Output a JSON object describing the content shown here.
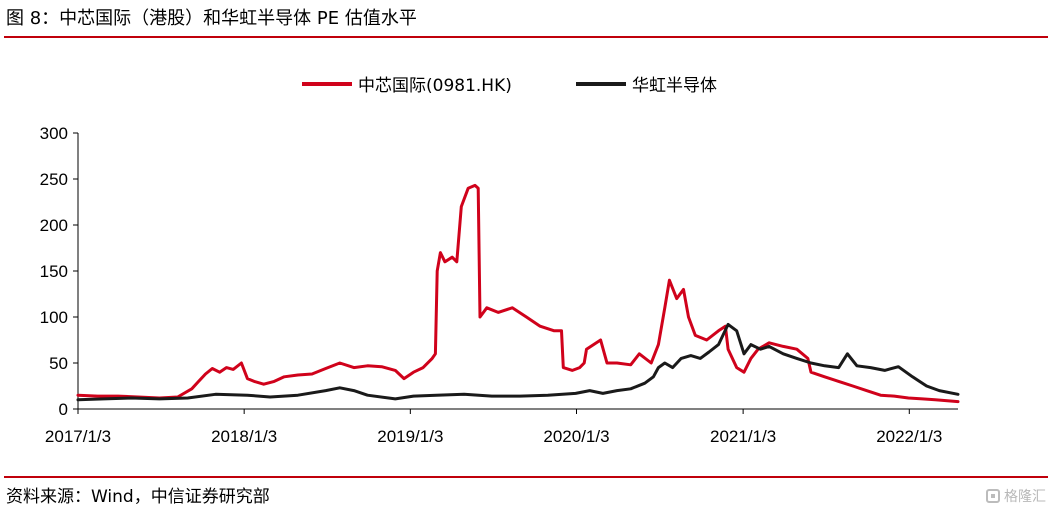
{
  "header": {
    "title": "图 8：中芯国际（港股）和华虹半导体 PE 估值水平"
  },
  "footer": {
    "source": "资料来源：Wind，中信证券研究部",
    "watermark": "格隆汇"
  },
  "colors": {
    "rule": "#c0000b",
    "smic": "#d0021b",
    "hhgrace": "#1a1a1a"
  },
  "chart_data": {
    "type": "line",
    "title": "",
    "xlabel": "",
    "ylabel": "",
    "ylim": [
      0,
      300
    ],
    "yticks": [
      "0",
      "50",
      "100",
      "150",
      "200",
      "250",
      "300"
    ],
    "xticks": [
      "2017/1/3",
      "2018/1/3",
      "2019/1/3",
      "2020/1/3",
      "2021/1/3",
      "2022/1/3"
    ],
    "xlim": [
      "2017-01-03",
      "2022-04-20"
    ],
    "legend_position": "top-center",
    "grid": false,
    "series": [
      {
        "name": "中芯国际(0981.HK)",
        "color": "#d0021b",
        "points": [
          [
            "2017-01-03",
            15
          ],
          [
            "2017-02-15",
            14
          ],
          [
            "2017-04-01",
            14
          ],
          [
            "2017-05-15",
            13
          ],
          [
            "2017-07-01",
            12
          ],
          [
            "2017-08-10",
            13
          ],
          [
            "2017-09-10",
            22
          ],
          [
            "2017-09-25",
            30
          ],
          [
            "2017-10-10",
            38
          ],
          [
            "2017-10-25",
            44
          ],
          [
            "2017-11-10",
            40
          ],
          [
            "2017-11-25",
            45
          ],
          [
            "2017-12-10",
            43
          ],
          [
            "2017-12-28",
            50
          ],
          [
            "2018-01-10",
            33
          ],
          [
            "2018-01-25",
            30
          ],
          [
            "2018-02-15",
            27
          ],
          [
            "2018-03-10",
            30
          ],
          [
            "2018-04-01",
            35
          ],
          [
            "2018-05-01",
            37
          ],
          [
            "2018-06-01",
            38
          ],
          [
            "2018-07-01",
            44
          ],
          [
            "2018-08-01",
            50
          ],
          [
            "2018-09-01",
            45
          ],
          [
            "2018-10-01",
            47
          ],
          [
            "2018-11-01",
            46
          ],
          [
            "2018-12-01",
            42
          ],
          [
            "2018-12-20",
            33
          ],
          [
            "2019-01-10",
            40
          ],
          [
            "2019-01-31",
            45
          ],
          [
            "2019-02-20",
            55
          ],
          [
            "2019-02-27",
            60
          ],
          [
            "2019-03-03",
            150
          ],
          [
            "2019-03-10",
            170
          ],
          [
            "2019-03-20",
            160
          ],
          [
            "2019-04-05",
            165
          ],
          [
            "2019-04-15",
            160
          ],
          [
            "2019-04-25",
            220
          ],
          [
            "2019-05-10",
            240
          ],
          [
            "2019-05-25",
            243
          ],
          [
            "2019-06-01",
            240
          ],
          [
            "2019-06-05",
            100
          ],
          [
            "2019-06-20",
            110
          ],
          [
            "2019-07-15",
            105
          ],
          [
            "2019-08-15",
            110
          ],
          [
            "2019-09-15",
            100
          ],
          [
            "2019-10-15",
            90
          ],
          [
            "2019-11-15",
            85
          ],
          [
            "2019-12-01",
            85
          ],
          [
            "2019-12-05",
            45
          ],
          [
            "2019-12-25",
            42
          ],
          [
            "2020-01-10",
            45
          ],
          [
            "2020-01-20",
            50
          ],
          [
            "2020-01-25",
            65
          ],
          [
            "2020-02-25",
            75
          ],
          [
            "2020-03-10",
            50
          ],
          [
            "2020-04-01",
            50
          ],
          [
            "2020-05-01",
            48
          ],
          [
            "2020-05-20",
            60
          ],
          [
            "2020-06-15",
            50
          ],
          [
            "2020-07-01",
            70
          ],
          [
            "2020-07-15",
            110
          ],
          [
            "2020-07-25",
            140
          ],
          [
            "2020-08-10",
            120
          ],
          [
            "2020-08-25",
            130
          ],
          [
            "2020-09-05",
            100
          ],
          [
            "2020-09-20",
            80
          ],
          [
            "2020-10-15",
            75
          ],
          [
            "2020-11-10",
            85
          ],
          [
            "2020-11-25",
            90
          ],
          [
            "2020-12-01",
            65
          ],
          [
            "2020-12-20",
            45
          ],
          [
            "2021-01-05",
            40
          ],
          [
            "2021-01-20",
            55
          ],
          [
            "2021-02-05",
            65
          ],
          [
            "2021-03-01",
            72
          ],
          [
            "2021-04-01",
            68
          ],
          [
            "2021-05-01",
            65
          ],
          [
            "2021-05-25",
            55
          ],
          [
            "2021-06-01",
            40
          ],
          [
            "2021-07-01",
            35
          ],
          [
            "2021-08-01",
            30
          ],
          [
            "2021-09-01",
            25
          ],
          [
            "2021-10-01",
            20
          ],
          [
            "2021-11-01",
            15
          ],
          [
            "2021-12-01",
            14
          ],
          [
            "2022-01-01",
            12
          ],
          [
            "2022-02-01",
            11
          ],
          [
            "2022-03-01",
            10
          ],
          [
            "2022-04-20",
            8
          ]
        ]
      },
      {
        "name": "华虹半导体",
        "color": "#1a1a1a",
        "points": [
          [
            "2017-01-03",
            10
          ],
          [
            "2017-03-01",
            11
          ],
          [
            "2017-05-01",
            12
          ],
          [
            "2017-07-01",
            11
          ],
          [
            "2017-09-01",
            12
          ],
          [
            "2017-11-01",
            16
          ],
          [
            "2018-01-10",
            15
          ],
          [
            "2018-03-01",
            13
          ],
          [
            "2018-05-01",
            15
          ],
          [
            "2018-07-01",
            20
          ],
          [
            "2018-08-01",
            23
          ],
          [
            "2018-09-01",
            20
          ],
          [
            "2018-10-01",
            15
          ],
          [
            "2018-12-01",
            11
          ],
          [
            "2019-01-10",
            14
          ],
          [
            "2019-03-01",
            15
          ],
          [
            "2019-05-01",
            16
          ],
          [
            "2019-07-01",
            14
          ],
          [
            "2019-09-01",
            14
          ],
          [
            "2019-11-01",
            15
          ],
          [
            "2020-01-01",
            17
          ],
          [
            "2020-02-01",
            20
          ],
          [
            "2020-03-01",
            17
          ],
          [
            "2020-04-01",
            20
          ],
          [
            "2020-05-01",
            22
          ],
          [
            "2020-06-01",
            28
          ],
          [
            "2020-06-20",
            35
          ],
          [
            "2020-07-01",
            45
          ],
          [
            "2020-07-15",
            50
          ],
          [
            "2020-08-01",
            45
          ],
          [
            "2020-08-20",
            55
          ],
          [
            "2020-09-10",
            58
          ],
          [
            "2020-10-01",
            55
          ],
          [
            "2020-10-20",
            62
          ],
          [
            "2020-11-10",
            70
          ],
          [
            "2020-12-01",
            92
          ],
          [
            "2020-12-20",
            85
          ],
          [
            "2021-01-05",
            60
          ],
          [
            "2021-01-20",
            70
          ],
          [
            "2021-02-10",
            65
          ],
          [
            "2021-03-01",
            68
          ],
          [
            "2021-04-01",
            60
          ],
          [
            "2021-05-01",
            55
          ],
          [
            "2021-06-01",
            50
          ],
          [
            "2021-07-01",
            47
          ],
          [
            "2021-08-01",
            45
          ],
          [
            "2021-08-20",
            60
          ],
          [
            "2021-09-10",
            47
          ],
          [
            "2021-10-10",
            45
          ],
          [
            "2021-11-10",
            42
          ],
          [
            "2021-12-10",
            46
          ],
          [
            "2022-01-10",
            35
          ],
          [
            "2022-02-10",
            25
          ],
          [
            "2022-03-10",
            20
          ],
          [
            "2022-04-20",
            16
          ]
        ]
      }
    ]
  }
}
